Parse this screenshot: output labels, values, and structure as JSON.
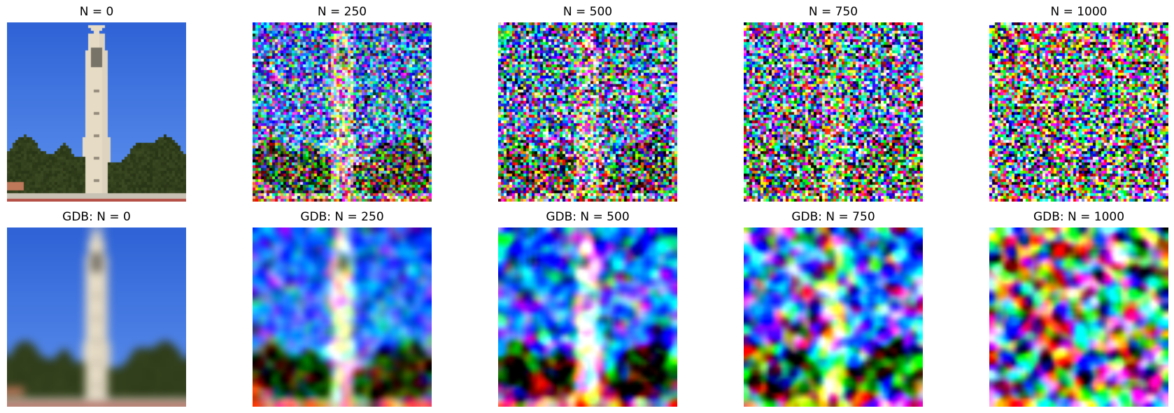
{
  "figure": {
    "rows": [
      {
        "name": "noisy",
        "panels": [
          {
            "title": "N = 0",
            "noise_level": 0
          },
          {
            "title": "N = 250",
            "noise_level": 250
          },
          {
            "title": "N = 500",
            "noise_level": 500
          },
          {
            "title": "N = 750",
            "noise_level": 750
          },
          {
            "title": "N = 1000",
            "noise_level": 1000
          }
        ]
      },
      {
        "name": "gdb",
        "panels": [
          {
            "title": "GDB: N = 0",
            "noise_level": 0
          },
          {
            "title": "GDB: N = 250",
            "noise_level": 250
          },
          {
            "title": "GDB: N = 500",
            "noise_level": 500
          },
          {
            "title": "GDB: N = 750",
            "noise_level": 750
          },
          {
            "title": "GDB: N = 1000",
            "noise_level": 1000
          }
        ]
      }
    ],
    "colors": {
      "sky_top": "#2f63d6",
      "sky_bottom": "#5e92ee",
      "tower": "#e6dcc6",
      "trees": "#3b4a22",
      "ground": "#c8c2b4"
    }
  }
}
